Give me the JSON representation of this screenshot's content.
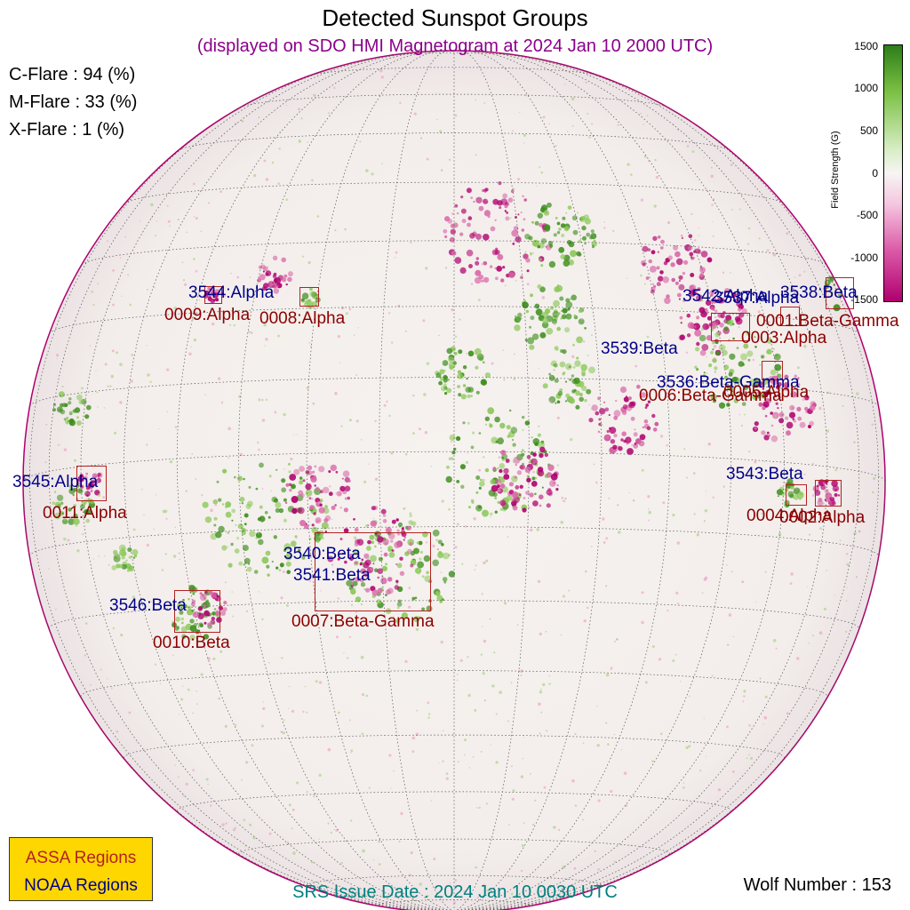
{
  "header": {
    "title": "Detected Sunspot Groups",
    "subtitle": "(displayed on SDO HMI Magnetogram at 2024 Jan 10 2000 UTC)"
  },
  "flare_probabilities": {
    "c_flare": "C-Flare : 94 (%)",
    "m_flare": "M-Flare : 33 (%)",
    "x_flare": "X-Flare :  1 (%)"
  },
  "colorbar": {
    "title": "Field Strength (G)",
    "ticks": [
      "1500",
      "1000",
      "500",
      "0",
      "-500",
      "-1000",
      "-1500"
    ],
    "positive_color": "#2e7d1a",
    "negative_color": "#b0006e"
  },
  "noaa_regions": [
    {
      "label": "3544:Alpha"
    },
    {
      "label": "3542:Alpha"
    },
    {
      "label": "3537:Alpha"
    },
    {
      "label": "3538:Beta"
    },
    {
      "label": "3539:Beta"
    },
    {
      "label": "3536:Beta-Gamma"
    },
    {
      "label": "3543:Beta"
    },
    {
      "label": "3545:Alpha"
    },
    {
      "label": "3540:Beta"
    },
    {
      "label": "3541:Beta"
    },
    {
      "label": "3546:Beta"
    }
  ],
  "assa_regions": [
    {
      "label": "0009:Alpha"
    },
    {
      "label": "0008:Alpha"
    },
    {
      "label": "0001:Beta-Gamma"
    },
    {
      "label": "0003:Alpha"
    },
    {
      "label": "0006:Beta-Gamma"
    },
    {
      "label": "0005:Alpha"
    },
    {
      "label": "0004:Alpha"
    },
    {
      "label": "0002:Alpha"
    },
    {
      "label": "0011:Alpha"
    },
    {
      "label": "0007:Beta-Gamma"
    },
    {
      "label": "0010:Beta"
    }
  ],
  "legend": {
    "assa": "ASSA Regions",
    "noaa": "NOAA Regions"
  },
  "footer": {
    "srs_issue": "SRS Issue Date : 2024 Jan 10 0030 UTC",
    "wolf_number": "Wolf Number : 153"
  },
  "colors": {
    "noaa_label": "#00008b",
    "assa_label": "#8b0000",
    "subtitle": "#8b008b",
    "footer": "#008080",
    "legend_bg": "#ffd700"
  }
}
